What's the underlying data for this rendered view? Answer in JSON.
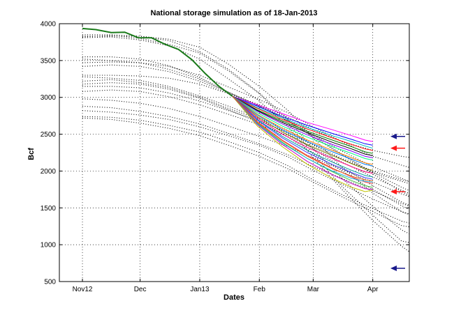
{
  "chart_data": {
    "type": "line",
    "title": "National storage simulation as of 18-Jan-2013",
    "xlabel": "Dates",
    "ylabel": "Bcf",
    "x_tick_labels": [
      "Nov12",
      "Dec",
      "Jan13",
      "Feb",
      "Mar",
      "Apr"
    ],
    "x_tick_dates": [
      "2012-11-01",
      "2012-12-01",
      "2013-01-01",
      "2013-02-01",
      "2013-03-01",
      "2013-04-01"
    ],
    "xlim": [
      "2012-10-20",
      "2013-04-20"
    ],
    "ylim": [
      500,
      4000
    ],
    "y_ticks": [
      500,
      1000,
      1500,
      2000,
      2500,
      3000,
      3500,
      4000
    ],
    "grid": true,
    "colors": {
      "actual": "#1a7a1a",
      "historical": "#000000",
      "arrow_blue": "#1a1a8c",
      "arrow_red": "#ff1a1a"
    },
    "actual_series": {
      "x": [
        "2012-11-01",
        "2012-11-08",
        "2012-11-16",
        "2012-11-23",
        "2012-11-30",
        "2012-12-07",
        "2012-12-14",
        "2012-12-21",
        "2012-12-28",
        "2013-01-04",
        "2013-01-11",
        "2013-01-18"
      ],
      "y": [
        3935,
        3920,
        3880,
        3885,
        3810,
        3808,
        3720,
        3650,
        3510,
        3320,
        3150,
        3015
      ]
    },
    "historical_series": [
      {
        "y": [
          3830,
          3830,
          3830,
          3790,
          3680,
          3450,
          3150,
          2820,
          2450,
          2050,
          1700,
          1450,
          1300
        ]
      },
      {
        "y": [
          3850,
          3850,
          3830,
          3770,
          3620,
          3380,
          3060,
          2700,
          2300,
          1900,
          1520,
          1200,
          1020
        ]
      },
      {
        "y": [
          3820,
          3840,
          3800,
          3720,
          3600,
          3360,
          3050,
          2650,
          2230,
          1790,
          1400,
          1050,
          980
        ]
      },
      {
        "y": [
          3810,
          3820,
          3780,
          3700,
          3520,
          3250,
          2950,
          2600,
          2180,
          1750,
          1330,
          980,
          720
        ]
      },
      {
        "y": [
          3550,
          3550,
          3520,
          3430,
          3270,
          3070,
          2880,
          2680,
          2470,
          2230,
          1980,
          1780,
          1620
        ]
      },
      {
        "y": [
          3520,
          3500,
          3470,
          3380,
          3250,
          3070,
          2880,
          2680,
          2460,
          2220,
          1960,
          1720,
          1540
        ]
      },
      {
        "y": [
          3470,
          3480,
          3470,
          3420,
          3300,
          3140,
          2970,
          2790,
          2600,
          2400,
          2200,
          2080,
          1970
        ]
      },
      {
        "y": [
          3420,
          3440,
          3420,
          3350,
          3220,
          3060,
          2890,
          2700,
          2490,
          2270,
          2060,
          1900,
          1760
        ]
      },
      {
        "y": [
          3300,
          3300,
          3290,
          3260,
          3180,
          3050,
          2900,
          2730,
          2560,
          2400,
          2280,
          2200,
          2150
        ]
      },
      {
        "y": [
          3280,
          3260,
          3230,
          3150,
          3020,
          2880,
          2720,
          2550,
          2360,
          2160,
          1980,
          1860,
          1750
        ]
      },
      {
        "y": [
          3220,
          3240,
          3200,
          3130,
          3000,
          2850,
          2700,
          2510,
          2300,
          2050,
          1800,
          1580,
          1420
        ]
      },
      {
        "y": [
          3180,
          3200,
          3180,
          3110,
          2990,
          2830,
          2660,
          2460,
          2240,
          2000,
          1750,
          1530,
          1350
        ]
      },
      {
        "y": [
          3150,
          3150,
          3130,
          3060,
          2950,
          2820,
          2680,
          2520,
          2350,
          2170,
          2000,
          1880,
          1800
        ]
      },
      {
        "y": [
          3080,
          3100,
          3080,
          3010,
          2900,
          2770,
          2630,
          2480,
          2310,
          2120,
          1920,
          1740,
          1580
        ]
      },
      {
        "y": [
          2980,
          2960,
          2920,
          2850,
          2740,
          2610,
          2470,
          2330,
          2180,
          2020,
          1850,
          1690,
          1560
        ]
      },
      {
        "y": [
          2880,
          2860,
          2810,
          2740,
          2640,
          2510,
          2370,
          2220,
          2060,
          1900,
          1730,
          1560,
          1430
        ]
      },
      {
        "y": [
          2820,
          2800,
          2760,
          2700,
          2600,
          2480,
          2350,
          2190,
          2010,
          1820,
          1620,
          1450,
          1330
        ]
      },
      {
        "y": [
          2740,
          2730,
          2690,
          2620,
          2530,
          2400,
          2250,
          2070,
          1880,
          1680,
          1490,
          1320,
          1230
        ]
      },
      {
        "y": [
          2720,
          2700,
          2650,
          2580,
          2480,
          2350,
          2200,
          2030,
          1850,
          1650,
          1450,
          1260,
          1200
        ]
      }
    ],
    "historical_x": [
      "2012-11-01",
      "2012-11-16",
      "2012-12-01",
      "2012-12-16",
      "2013-01-01",
      "2013-01-16",
      "2013-02-01",
      "2013-02-16",
      "2013-03-01",
      "2013-03-16",
      "2013-04-01",
      "2013-04-16",
      "2013-04-30"
    ],
    "forecast_series": [
      {
        "color": "#ff00ff",
        "y": [
          3015,
          2900,
          2780,
          2660,
          2560,
          2480,
          2420,
          2400
        ]
      },
      {
        "color": "#0000ff",
        "y": [
          3015,
          2880,
          2740,
          2620,
          2510,
          2430,
          2370,
          2350
        ]
      },
      {
        "color": "#00bfbf",
        "y": [
          3015,
          2860,
          2720,
          2590,
          2480,
          2400,
          2340,
          2310
        ]
      },
      {
        "color": "#ff0000",
        "y": [
          3015,
          2850,
          2700,
          2570,
          2450,
          2360,
          2300,
          2280
        ]
      },
      {
        "color": "#008000",
        "y": [
          3015,
          2830,
          2680,
          2540,
          2420,
          2330,
          2260,
          2240
        ]
      },
      {
        "color": "#000000",
        "y": [
          3015,
          2820,
          2660,
          2520,
          2390,
          2300,
          2230,
          2210
        ]
      },
      {
        "color": "#8000ff",
        "y": [
          3015,
          2810,
          2640,
          2490,
          2360,
          2270,
          2200,
          2180
        ]
      },
      {
        "color": "#00ff80",
        "y": [
          3015,
          2790,
          2610,
          2460,
          2330,
          2240,
          2170,
          2150
        ]
      },
      {
        "color": "#ff8000",
        "y": [
          3015,
          2770,
          2580,
          2420,
          2280,
          2180,
          2110,
          2090
        ]
      },
      {
        "color": "#0080ff",
        "y": [
          3015,
          2760,
          2560,
          2400,
          2260,
          2160,
          2090,
          2070
        ]
      },
      {
        "color": "#808000",
        "y": [
          3015,
          2740,
          2530,
          2360,
          2210,
          2100,
          2030,
          2010
        ]
      },
      {
        "color": "#ff0080",
        "y": [
          3015,
          2720,
          2500,
          2320,
          2170,
          2060,
          1990,
          1970
        ]
      },
      {
        "color": "#00a0a0",
        "y": [
          3015,
          2700,
          2470,
          2280,
          2120,
          2010,
          1940,
          1920
        ]
      },
      {
        "color": "#4040ff",
        "y": [
          3015,
          2690,
          2450,
          2250,
          2090,
          1980,
          1910,
          1890
        ]
      },
      {
        "color": "#ff4040",
        "y": [
          3015,
          2670,
          2420,
          2210,
          2040,
          1920,
          1850,
          1830
        ]
      },
      {
        "color": "#40c040",
        "y": [
          3015,
          2650,
          2390,
          2170,
          1990,
          1870,
          1800,
          1780
        ]
      },
      {
        "color": "#c000c0",
        "y": [
          3015,
          2630,
          2360,
          2130,
          1950,
          1830,
          1760,
          1750
        ]
      },
      {
        "color": "#c0c000",
        "y": [
          3015,
          2610,
          2330,
          2090,
          1900,
          1780,
          1720,
          1740
        ]
      },
      {
        "color": "#20b0e0",
        "y": [
          3015,
          2640,
          2380,
          2170,
          2000,
          1900,
          1860,
          1850
        ]
      },
      {
        "color": "#e06020",
        "y": [
          3015,
          2660,
          2410,
          2200,
          2030,
          1930,
          1880,
          1870
        ]
      }
    ],
    "forecast_x": [
      "2013-01-18",
      "2013-01-31",
      "2013-02-13",
      "2013-02-26",
      "2013-03-11",
      "2013-03-21",
      "2013-03-28",
      "2013-04-01"
    ],
    "markers": [
      {
        "color": "blue",
        "y": 2470
      },
      {
        "color": "red",
        "y": 2310
      },
      {
        "color": "red",
        "y": 1720
      },
      {
        "color": "blue",
        "y": 680
      }
    ]
  }
}
